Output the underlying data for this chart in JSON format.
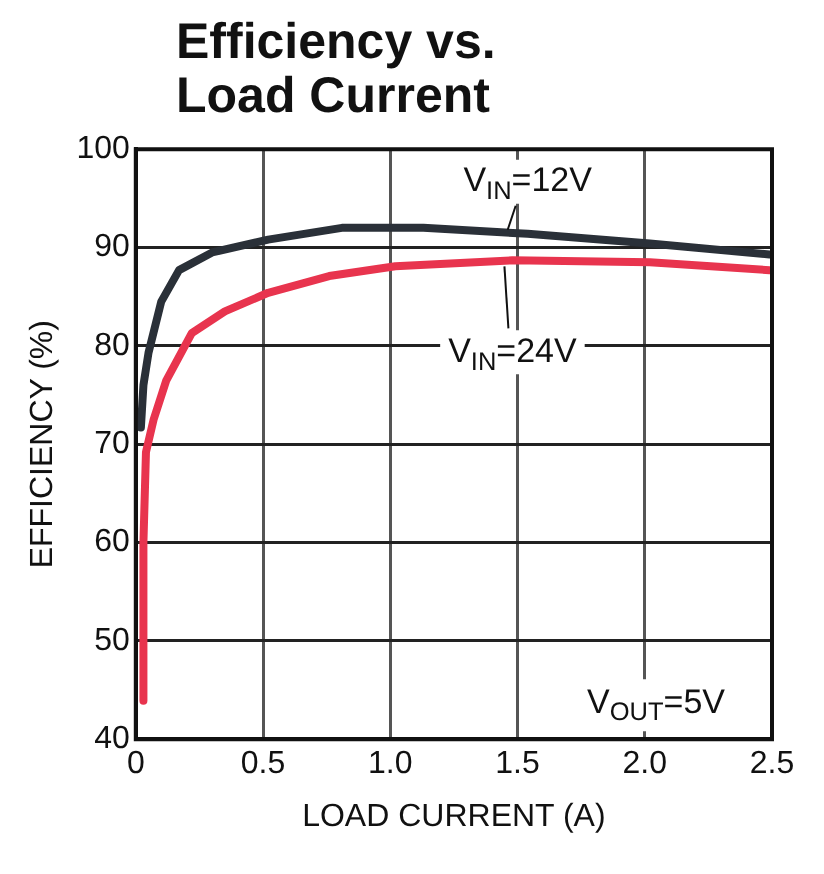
{
  "chart_data": {
    "type": "line",
    "title": "Efficiency vs.\nLoad Current",
    "xlabel": "LOAD CURRENT (A)",
    "ylabel": "EFFICIENCY (%)",
    "xlim": [
      0,
      2.5
    ],
    "xticks": [
      {
        "value": 0,
        "label": "0"
      },
      0.5,
      {
        "value": 1,
        "label": "1.0"
      },
      1.5,
      {
        "value": 2,
        "label": "2.0"
      },
      2.5
    ],
    "ylim": [
      40,
      100
    ],
    "yticks": [
      40,
      50,
      60,
      70,
      80,
      90,
      100
    ],
    "grid": true,
    "legend": false,
    "marker": "none",
    "line_style": "solid",
    "series": [
      {
        "name": "V$_{IN}$=12V",
        "color": "#2a3038",
        "x": [
          0.02,
          0.03,
          0.05,
          0.1,
          0.17,
          0.3,
          0.52,
          0.81,
          1.13,
          1.54,
          2.02,
          2.49
        ],
        "values": [
          71.7,
          76,
          79.3,
          84.5,
          87.7,
          89.5,
          90.8,
          92,
          92,
          91.4,
          90.4,
          89.3
        ]
      },
      {
        "name": "V$_{IN}$=24V",
        "color": "#e8344e",
        "x": [
          0.03,
          0.03,
          0.04,
          0.07,
          0.12,
          0.22,
          0.35,
          0.52,
          0.76,
          1.02,
          1.48,
          2.02,
          2.49
        ],
        "values": [
          43.9,
          60,
          69.2,
          72.5,
          76.5,
          81.3,
          83.5,
          85.4,
          87.1,
          88.1,
          88.7,
          88.5,
          87.7
        ]
      }
    ],
    "annotations": [
      "V$_{OUT}$=5V"
    ]
  }
}
